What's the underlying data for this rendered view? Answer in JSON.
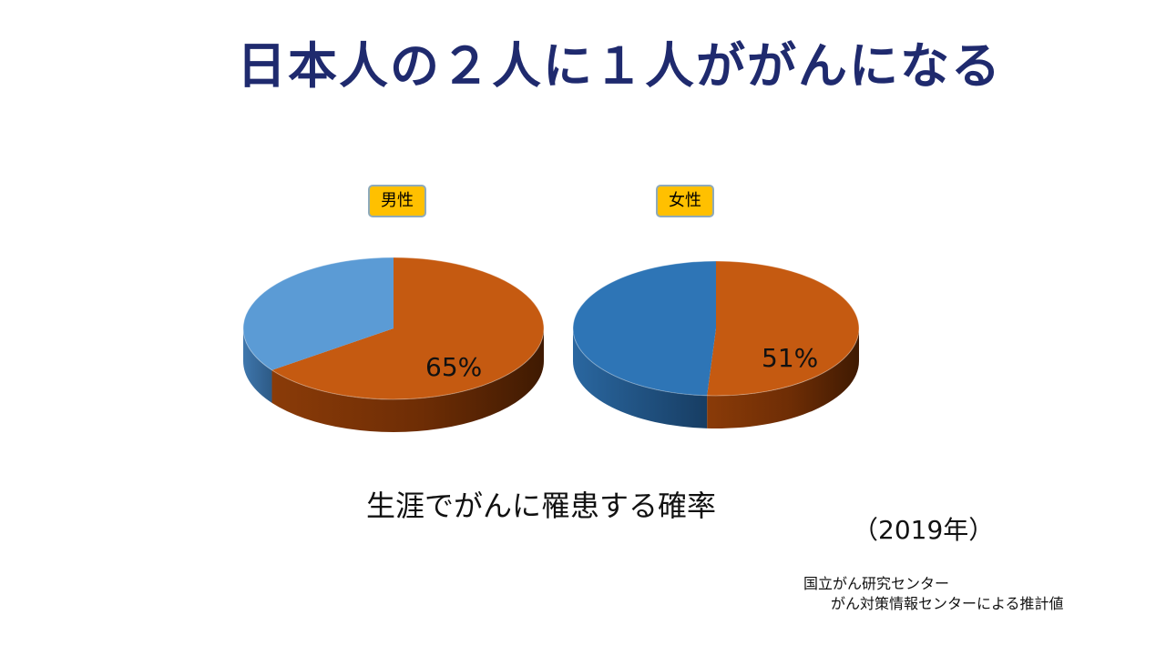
{
  "title": "日本人の２人に１人ががんになる",
  "subtitle": "生涯でがんに罹患する確率",
  "year": "（2019年）",
  "source": {
    "line1": "国立がん研究センター",
    "line2": "がん対策情報センターによる推計値"
  },
  "colors": {
    "title": "#1f2a6e",
    "cancer_slice": "#c55a11",
    "male_rest": "#5b9bd5",
    "female_rest": "#2e75b6",
    "badge": "#ffc000"
  },
  "chart_data": [
    {
      "type": "pie",
      "title": "男性",
      "slices": [
        {
          "label": "65%",
          "value": 65
        },
        {
          "label": "",
          "value": 35
        }
      ]
    },
    {
      "type": "pie",
      "title": "女性",
      "slices": [
        {
          "label": "51%",
          "value": 51
        },
        {
          "label": "",
          "value": 49
        }
      ]
    }
  ]
}
